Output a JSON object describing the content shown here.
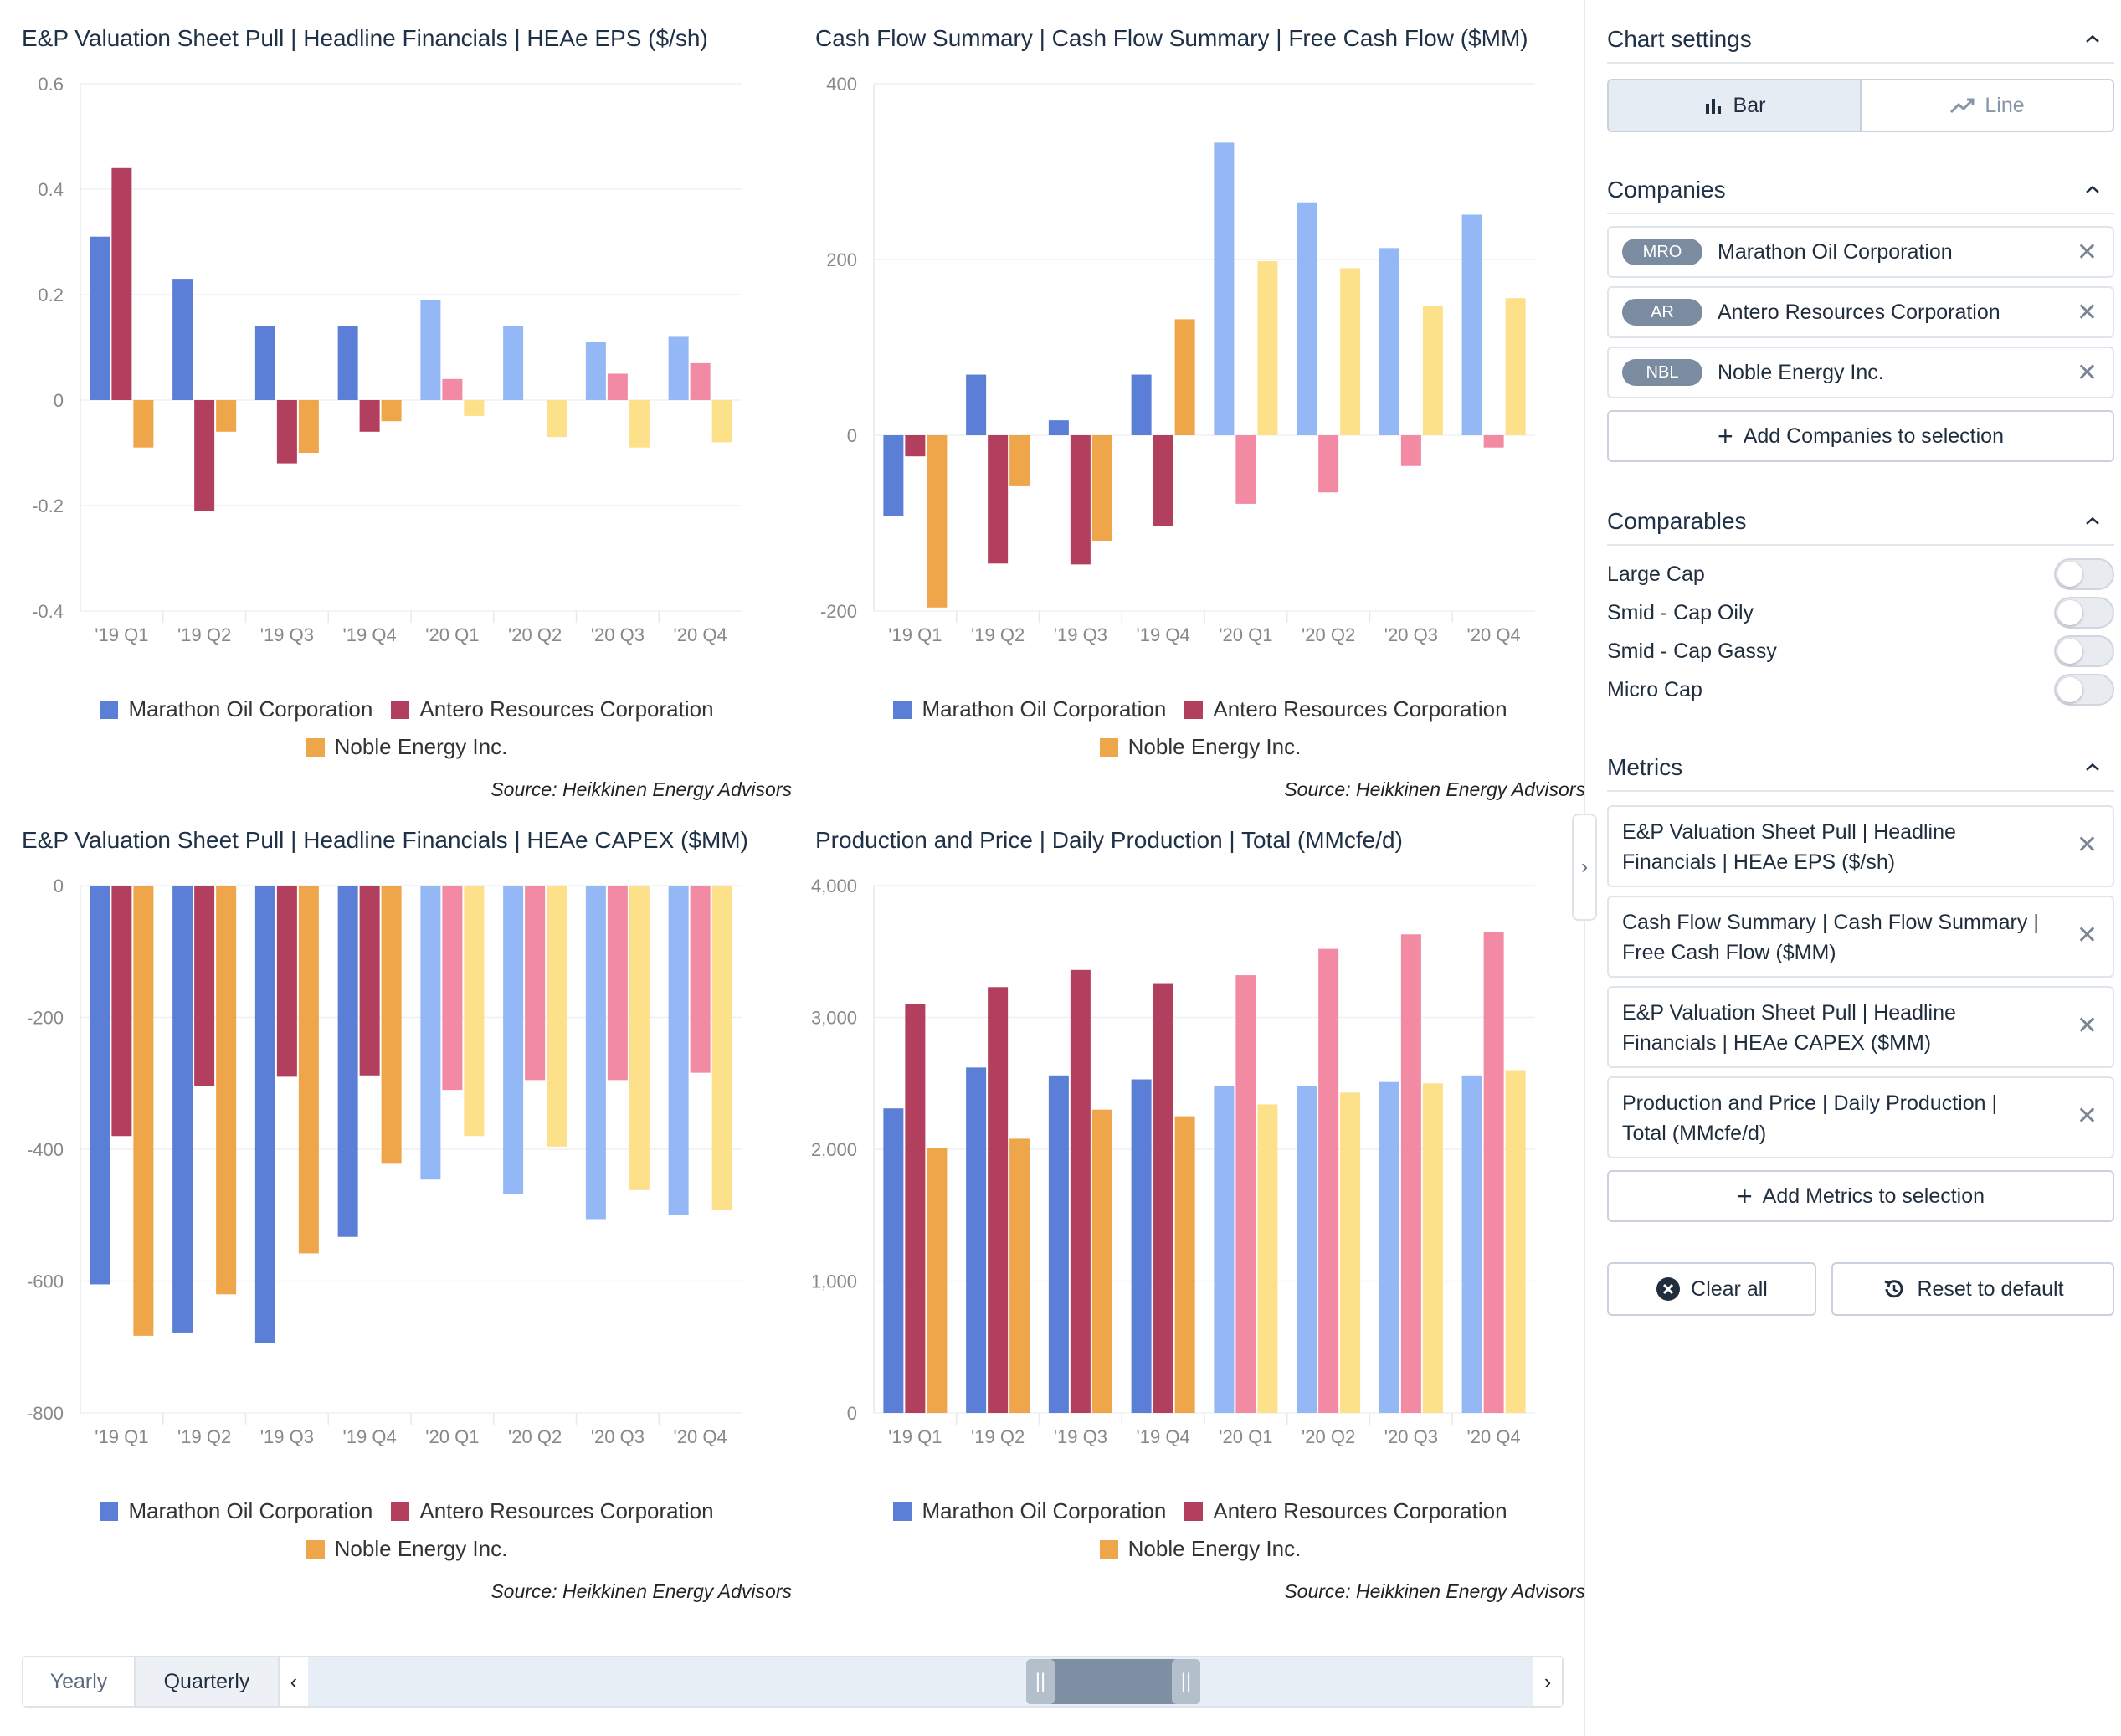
{
  "colors": {
    "mro_2019": "#5b7fd6",
    "mro_2020": "#94b8f5",
    "ar_2019": "#b33f5f",
    "ar_2020": "#f28aa4",
    "nbl_2019": "#efa54a",
    "nbl_2020": "#fde08a"
  },
  "legend": {
    "mro": "Marathon Oil Corporation",
    "ar": "Antero Resources Corporation",
    "nbl": "Noble Energy Inc."
  },
  "source_text": "Source: Heikkinen Energy Advisors",
  "chart_data": [
    {
      "type": "bar",
      "title": "E&P Valuation Sheet Pull | Headline Financials | HEAe EPS ($/sh)",
      "categories": [
        "'19 Q1",
        "'19 Q2",
        "'19 Q3",
        "'19 Q4",
        "'20 Q1",
        "'20 Q2",
        "'20 Q3",
        "'20 Q4"
      ],
      "ylim": [
        -0.4,
        0.6
      ],
      "yticks": [
        0.6,
        0.4,
        0.2,
        0,
        -0.2,
        -0.4
      ],
      "ytick_labels": [
        "0.6",
        "0.4",
        "0.2",
        "0",
        "-0.2",
        "-0.4"
      ],
      "series": [
        {
          "name": "Marathon Oil Corporation",
          "values": [
            0.31,
            0.23,
            0.14,
            0.14,
            0.19,
            0.14,
            0.11,
            0.12
          ]
        },
        {
          "name": "Antero Resources Corporation",
          "values": [
            0.44,
            -0.21,
            -0.12,
            -0.06,
            0.04,
            0.0,
            0.05,
            0.07
          ]
        },
        {
          "name": "Noble Energy Inc.",
          "values": [
            -0.09,
            -0.06,
            -0.1,
            -0.04,
            -0.03,
            -0.07,
            -0.09,
            -0.08
          ]
        }
      ]
    },
    {
      "type": "bar",
      "title": "Cash Flow Summary | Cash Flow Summary | Free Cash Flow ($MM)",
      "categories": [
        "'19 Q1",
        "'19 Q2",
        "'19 Q3",
        "'19 Q4",
        "'20 Q1",
        "'20 Q2",
        "'20 Q3",
        "'20 Q4"
      ],
      "ylim": [
        -200,
        400
      ],
      "yticks": [
        400,
        200,
        0,
        -200
      ],
      "ytick_labels": [
        "400",
        "200",
        "0",
        "-200"
      ],
      "series": [
        {
          "name": "Marathon Oil Corporation",
          "values": [
            -92,
            69,
            17,
            69,
            333,
            265,
            213,
            251
          ]
        },
        {
          "name": "Antero Resources Corporation",
          "values": [
            -24,
            -146,
            -147,
            -103,
            -78,
            -65,
            -35,
            -14
          ]
        },
        {
          "name": "Noble Energy Inc.",
          "values": [
            -196,
            -58,
            -120,
            132,
            198,
            190,
            147,
            156
          ]
        }
      ]
    },
    {
      "type": "bar",
      "title": "E&P Valuation Sheet Pull | Headline Financials | HEAe CAPEX ($MM)",
      "categories": [
        "'19 Q1",
        "'19 Q2",
        "'19 Q3",
        "'19 Q4",
        "'20 Q1",
        "'20 Q2",
        "'20 Q3",
        "'20 Q4"
      ],
      "ylim": [
        -800,
        0
      ],
      "yticks": [
        0,
        -200,
        -400,
        -600,
        -800
      ],
      "ytick_labels": [
        "0",
        "-200",
        "-400",
        "-600",
        "-800"
      ],
      "series": [
        {
          "name": "Marathon Oil Corporation",
          "values": [
            -605,
            -678,
            -694,
            -533,
            -446,
            -468,
            -506,
            -500
          ]
        },
        {
          "name": "Antero Resources Corporation",
          "values": [
            -380,
            -304,
            -290,
            -288,
            -310,
            -295,
            -295,
            -284
          ]
        },
        {
          "name": "Noble Energy Inc.",
          "values": [
            -683,
            -620,
            -558,
            -422,
            -380,
            -396,
            -462,
            -492
          ]
        }
      ]
    },
    {
      "type": "bar",
      "title": "Production and Price | Daily Production | Total (MMcfe/d)",
      "categories": [
        "'19 Q1",
        "'19 Q2",
        "'19 Q3",
        "'19 Q4",
        "'20 Q1",
        "'20 Q2",
        "'20 Q3",
        "'20 Q4"
      ],
      "ylim": [
        0,
        4000
      ],
      "yticks": [
        4000,
        3000,
        2000,
        1000,
        0
      ],
      "ytick_labels": [
        "4,000",
        "3,000",
        "2,000",
        "1,000",
        "0"
      ],
      "series": [
        {
          "name": "Marathon Oil Corporation",
          "values": [
            2310,
            2620,
            2560,
            2530,
            2480,
            2480,
            2510,
            2560
          ]
        },
        {
          "name": "Antero Resources Corporation",
          "values": [
            3100,
            3230,
            3360,
            3260,
            3320,
            3520,
            3630,
            3650
          ]
        },
        {
          "name": "Noble Energy Inc.",
          "values": [
            2010,
            2080,
            2300,
            2250,
            2340,
            2430,
            2500,
            2600
          ]
        }
      ]
    }
  ],
  "range": {
    "yearly_label": "Yearly",
    "quarterly_label": "Quarterly",
    "prev_icon": "‹",
    "next_icon": "›",
    "handle_glyph": "||"
  },
  "sidebar": {
    "chart_settings_title": "Chart settings",
    "bar_label": "Bar",
    "line_label": "Line",
    "companies_title": "Companies",
    "companies": [
      {
        "ticker": "MRO",
        "name": "Marathon Oil Corporation"
      },
      {
        "ticker": "AR",
        "name": "Antero Resources Corporation"
      },
      {
        "ticker": "NBL",
        "name": "Noble Energy Inc."
      }
    ],
    "add_companies_label": "Add Companies to selection",
    "comparables_title": "Comparables",
    "comparables": [
      "Large Cap",
      "Smid - Cap Oily",
      "Smid - Cap Gassy",
      "Micro Cap"
    ],
    "metrics_title": "Metrics",
    "metrics": [
      "E&P Valuation Sheet Pull | Headline Financials | HEAe EPS ($/sh)",
      "Cash Flow Summary | Cash Flow Summary | Free Cash Flow ($MM)",
      "E&P Valuation Sheet Pull | Headline Financials | HEAe CAPEX ($MM)",
      "Production and Price | Daily Production | Total (MMcfe/d)"
    ],
    "add_metrics_label": "Add Metrics to selection",
    "clear_all_label": "Clear all",
    "reset_label": "Reset to default",
    "close_glyph": "✕",
    "plus_glyph": "+",
    "collapse_glyph": "›"
  }
}
